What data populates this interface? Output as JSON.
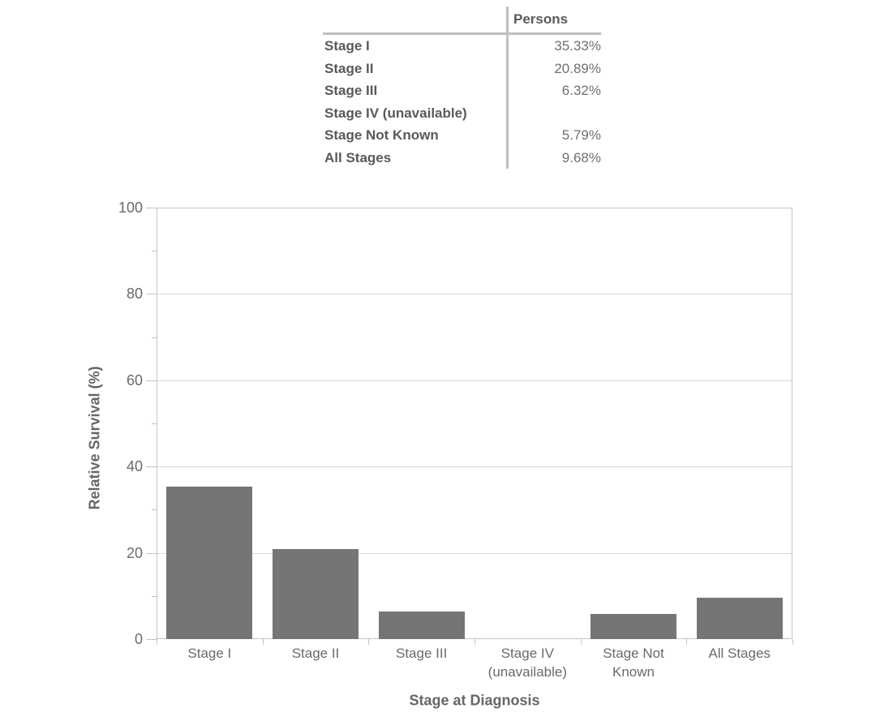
{
  "table": {
    "header": "Persons",
    "rows": [
      {
        "label": "Stage I",
        "value": "35.33%"
      },
      {
        "label": "Stage II",
        "value": "20.89%"
      },
      {
        "label": "Stage III",
        "value": "6.32%"
      },
      {
        "label": "Stage IV (unavailable)",
        "value": ""
      },
      {
        "label": "Stage Not Known",
        "value": "5.79%"
      },
      {
        "label": "All Stages",
        "value": "9.68%"
      }
    ]
  },
  "chart_data": {
    "type": "bar",
    "series_name": "Persons",
    "categories": [
      "Stage I",
      "Stage II",
      "Stage III",
      "Stage IV (unavailable)",
      "Stage Not Known",
      "All Stages"
    ],
    "values": [
      35.33,
      20.89,
      6.32,
      null,
      5.79,
      9.68
    ],
    "xlabel": "Stage at Diagnosis",
    "ylabel": "Relative Survival (%)",
    "ylim": [
      0,
      100
    ],
    "yticks": [
      0,
      20,
      40,
      60,
      80,
      100
    ],
    "yminor_ticks": [
      10,
      30,
      50,
      70,
      90
    ],
    "grid": "horizontal gridlines at major y ticks",
    "legend": "none",
    "colors": {
      "bar": "#757575",
      "axis_line": "#c4c4c4",
      "gridline": "#d9d9d9",
      "tick_label": "#6a6a6a",
      "axis_title": "#666666",
      "table_label": "#595959",
      "table_value": "#707070",
      "table_rule": "#bfbfbf"
    }
  }
}
